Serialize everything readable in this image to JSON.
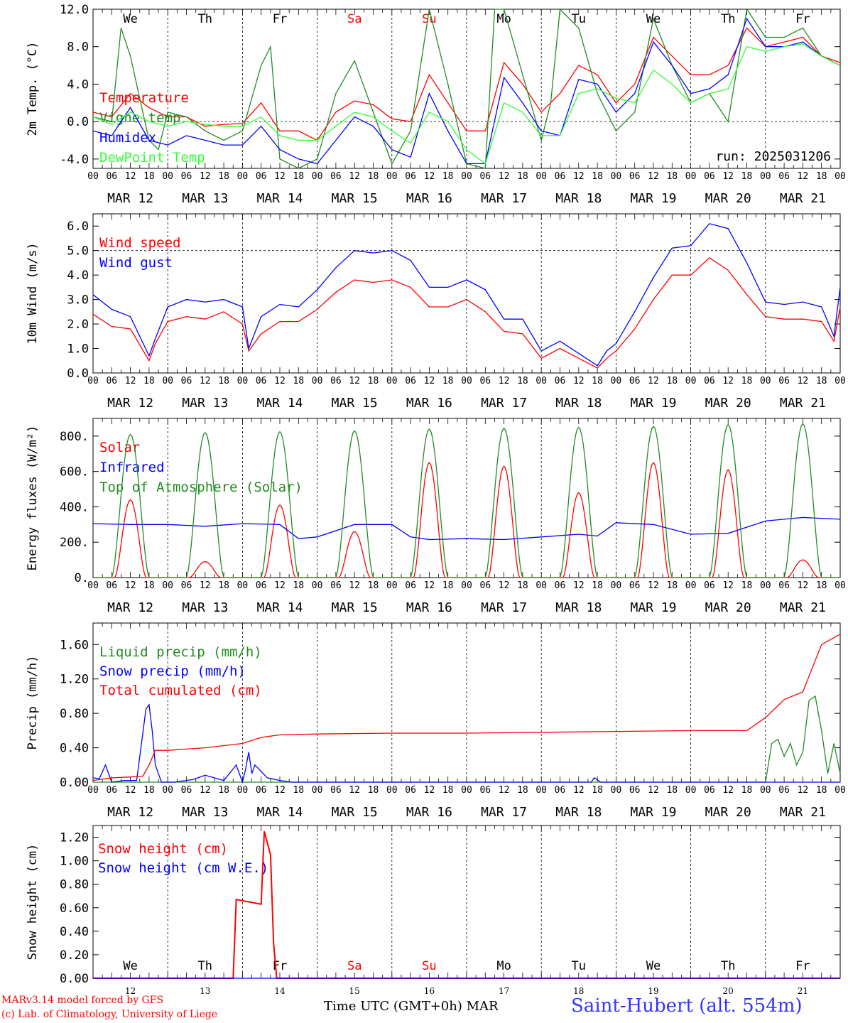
{
  "chart_data": [
    {
      "type": "line",
      "ylabel": "2m Temp. (°C)",
      "ylim": [
        -5.0,
        12.0
      ],
      "yticks": [
        "-4.0",
        "0.0",
        "4.0",
        "8.0",
        "12.0"
      ],
      "ytick_values": [
        -4,
        0,
        4,
        8,
        12
      ],
      "ref_line": 0,
      "run_label": "run: 2025031206",
      "weekdays": [
        {
          "label": "We",
          "color": "#000000"
        },
        {
          "label": "Th",
          "color": "#000000"
        },
        {
          "label": "Fr",
          "color": "#000000"
        },
        {
          "label": "Sa",
          "color": "#ff0000"
        },
        {
          "label": "Su",
          "color": "#ff0000"
        },
        {
          "label": "Mo",
          "color": "#000000"
        },
        {
          "label": "Tu",
          "color": "#000000"
        },
        {
          "label": "We",
          "color": "#000000"
        },
        {
          "label": "Th",
          "color": "#000000"
        },
        {
          "label": "Fr",
          "color": "#000000"
        }
      ],
      "series": [
        {
          "name": "Temperature",
          "color": "#ff0000",
          "x": [
            0,
            6,
            12,
            18,
            24,
            30,
            36,
            42,
            48,
            54,
            60,
            66,
            72,
            78,
            84,
            90,
            96,
            102,
            108,
            114,
            120,
            126,
            132,
            138,
            144,
            150,
            156,
            162,
            168,
            174,
            180,
            186,
            192,
            198,
            204,
            210,
            216,
            222,
            228,
            234,
            240
          ],
          "values": [
            1,
            0.5,
            3,
            1.5,
            0.5,
            0.5,
            -0.5,
            -0.3,
            -0.2,
            2,
            -1,
            -1,
            -2,
            1,
            2.2,
            1.8,
            0.3,
            0,
            5,
            2,
            -1,
            -1,
            6.3,
            4,
            1,
            3,
            6,
            5,
            2,
            4,
            9,
            7,
            5,
            5,
            6,
            10,
            8,
            8.5,
            9,
            7,
            6.3
          ]
        },
        {
          "name": "Vigne temp",
          "color": "#228b22",
          "x": [
            0,
            6,
            9,
            12,
            18,
            21,
            24,
            30,
            36,
            42,
            48,
            54,
            57,
            60,
            66,
            72,
            78,
            84,
            90,
            96,
            102,
            108,
            114,
            120,
            126,
            129,
            132,
            138,
            144,
            147,
            150,
            156,
            162,
            168,
            174,
            180,
            186,
            192,
            198,
            204,
            210,
            216,
            222,
            228,
            234,
            240
          ],
          "values": [
            0.5,
            0,
            10,
            7,
            -2,
            -3,
            1,
            0.5,
            -1,
            -2,
            -1,
            6,
            8,
            -4,
            -5,
            -4,
            3,
            6.5,
            1,
            -4.5,
            -1,
            12,
            4,
            -4.5,
            -5,
            12,
            12,
            5,
            -2,
            2,
            12,
            10,
            3,
            -1,
            1,
            11,
            6,
            2,
            3,
            0,
            12,
            9,
            9,
            10,
            7,
            6
          ]
        },
        {
          "name": "Humidex",
          "color": "#0000ff",
          "x": [
            0,
            6,
            12,
            18,
            24,
            30,
            36,
            42,
            48,
            54,
            60,
            66,
            72,
            78,
            84,
            90,
            96,
            102,
            108,
            114,
            120,
            126,
            132,
            138,
            144,
            150,
            156,
            162,
            168,
            174,
            180,
            186,
            192,
            198,
            204,
            210,
            216,
            222,
            228,
            234,
            240
          ],
          "values": [
            -1,
            -1.5,
            1.5,
            -2,
            -2.5,
            -1.5,
            -2,
            -2.5,
            -2.5,
            -0.5,
            -3,
            -4,
            -4.5,
            -2,
            0.5,
            -0.5,
            -3,
            -3.8,
            3,
            -1,
            -4.5,
            -4.5,
            4.7,
            2,
            -1,
            -1.5,
            4.5,
            4,
            1,
            3,
            8.5,
            6,
            3,
            3.5,
            5,
            11,
            8,
            8,
            8.5,
            7,
            6
          ]
        },
        {
          "name": "DewPoint Temp",
          "color": "#33ff33",
          "x": [
            0,
            6,
            12,
            18,
            24,
            30,
            36,
            42,
            48,
            54,
            60,
            66,
            72,
            78,
            84,
            90,
            96,
            102,
            108,
            114,
            120,
            126,
            132,
            138,
            144,
            150,
            156,
            162,
            168,
            174,
            180,
            186,
            192,
            198,
            204,
            210,
            216,
            222,
            228,
            234,
            240
          ],
          "values": [
            0.5,
            -0.3,
            1,
            0,
            -0.5,
            0,
            -0.3,
            -0.5,
            -0.5,
            0.5,
            -1.5,
            -2,
            -2,
            -0.5,
            1,
            0.5,
            -1,
            -2.3,
            1,
            0,
            -3,
            -4.5,
            2,
            1,
            -1.5,
            -1.5,
            3,
            3.5,
            2.5,
            2,
            5.5,
            4,
            2,
            3,
            3.5,
            8,
            7.5,
            8,
            8.3,
            7,
            6
          ]
        }
      ]
    },
    {
      "type": "line",
      "ylabel": "10m Wind (m/s)",
      "ylim": [
        0.0,
        6.5
      ],
      "yticks": [
        "0.0",
        "1.0",
        "2.0",
        "3.0",
        "4.0",
        "5.0",
        "6.0"
      ],
      "ytick_values": [
        0,
        1,
        2,
        3,
        4,
        5,
        6
      ],
      "ref_line": 5,
      "series": [
        {
          "name": "Wind speed",
          "color": "#ff0000",
          "x": [
            0,
            6,
            12,
            18,
            20,
            24,
            30,
            36,
            42,
            48,
            50,
            54,
            60,
            66,
            72,
            78,
            84,
            90,
            96,
            102,
            108,
            114,
            120,
            126,
            132,
            138,
            144,
            150,
            156,
            162,
            165,
            168,
            174,
            180,
            186,
            192,
            198,
            204,
            210,
            216,
            222,
            228,
            234,
            238,
            240
          ],
          "values": [
            2.4,
            1.9,
            1.8,
            0.5,
            1.2,
            2.1,
            2.3,
            2.2,
            2.5,
            2,
            0.9,
            1.6,
            2.1,
            2.1,
            2.6,
            3.3,
            3.8,
            3.7,
            3.8,
            3.5,
            2.7,
            2.7,
            3,
            2.5,
            1.7,
            1.6,
            0.6,
            1,
            0.6,
            0.2,
            0.6,
            0.9,
            1.8,
            3,
            4,
            4,
            4.7,
            4.2,
            3.2,
            2.3,
            2.2,
            2.2,
            2.1,
            1.3,
            2.7
          ]
        },
        {
          "name": "Wind gust",
          "color": "#0000ff",
          "x": [
            0,
            6,
            12,
            18,
            20,
            24,
            30,
            36,
            42,
            48,
            50,
            54,
            60,
            66,
            72,
            78,
            84,
            90,
            96,
            102,
            108,
            114,
            120,
            126,
            132,
            138,
            144,
            150,
            156,
            162,
            165,
            168,
            174,
            180,
            186,
            192,
            198,
            204,
            210,
            216,
            222,
            228,
            234,
            238,
            240
          ],
          "values": [
            3.2,
            2.6,
            2.3,
            0.7,
            1.4,
            2.7,
            3,
            2.9,
            3,
            2.7,
            1,
            2.3,
            2.8,
            2.7,
            3.4,
            4.3,
            5,
            4.9,
            5,
            4.6,
            3.5,
            3.5,
            3.8,
            3.4,
            2.2,
            2.2,
            0.9,
            1.3,
            0.8,
            0.3,
            0.9,
            1.2,
            2.5,
            3.9,
            5.1,
            5.2,
            6.1,
            5.9,
            4.5,
            2.9,
            2.8,
            2.9,
            2.7,
            1.5,
            3.5
          ]
        }
      ]
    },
    {
      "type": "line",
      "ylabel": "Energy fluxes (W/m²)",
      "ylim": [
        0,
        900
      ],
      "yticks": [
        "0.",
        "200.",
        "400.",
        "600.",
        "800."
      ],
      "ytick_values": [
        0,
        200,
        400,
        600,
        800
      ],
      "series": [
        {
          "name": "Solar",
          "color": "#ff0000",
          "peaks": [
            440,
            90,
            410,
            260,
            650,
            630,
            480,
            650,
            610,
            100
          ]
        },
        {
          "name": "Infrared",
          "color": "#0000ff",
          "x": [
            0,
            12,
            24,
            36,
            48,
            60,
            66,
            72,
            84,
            96,
            102,
            108,
            120,
            132,
            144,
            156,
            162,
            168,
            180,
            192,
            204,
            216,
            228,
            240
          ],
          "values": [
            305,
            300,
            300,
            290,
            305,
            300,
            220,
            230,
            300,
            300,
            230,
            215,
            220,
            215,
            230,
            245,
            235,
            310,
            300,
            245,
            250,
            320,
            340,
            330
          ]
        },
        {
          "name": "Top of Atmosphere (Solar)",
          "color": "#228b22",
          "peaks": [
            810,
            820,
            825,
            830,
            840,
            845,
            850,
            855,
            865,
            870
          ]
        }
      ]
    },
    {
      "type": "line",
      "ylabel": "Precip (mm/h)",
      "ylim": [
        0.0,
        1.85
      ],
      "yticks": [
        "0.00",
        "0.40",
        "0.80",
        "1.20",
        "1.60"
      ],
      "ytick_values": [
        0,
        0.4,
        0.8,
        1.2,
        1.6
      ],
      "series": [
        {
          "name": "Liquid precip (mm/h)",
          "color": "#228b22",
          "x": [
            0,
            216,
            218,
            220,
            222,
            224,
            226,
            228,
            230,
            232,
            234,
            236,
            238,
            240
          ],
          "values": [
            0,
            0,
            0.45,
            0.5,
            0.3,
            0.45,
            0.2,
            0.35,
            0.95,
            1.0,
            0.6,
            0.1,
            0.45,
            0.1
          ]
        },
        {
          "name": "Snow precip (mm/h)",
          "color": "#0000ff",
          "x": [
            0,
            2,
            4,
            6,
            10,
            14,
            17,
            18,
            19,
            20,
            22,
            26,
            32,
            36,
            42,
            46,
            48,
            49,
            50,
            51,
            52,
            56,
            60,
            64,
            160,
            161,
            162,
            163,
            164,
            240
          ],
          "values": [
            0.05,
            0.04,
            0.2,
            0,
            0.02,
            0.02,
            0.85,
            0.9,
            0.6,
            0.2,
            0,
            0,
            0.03,
            0.08,
            0.02,
            0.2,
            0,
            0.15,
            0.35,
            0.1,
            0.2,
            0.05,
            0.02,
            0,
            0,
            0.05,
            0.03,
            0,
            0,
            0
          ]
        },
        {
          "name": "Total cumulated (cm)",
          "color": "#ff0000",
          "x": [
            0,
            6,
            12,
            16,
            18,
            20,
            24,
            36,
            48,
            54,
            60,
            72,
            96,
            120,
            144,
            168,
            192,
            210,
            216,
            222,
            228,
            234,
            240
          ],
          "values": [
            0.02,
            0.05,
            0.06,
            0.07,
            0.2,
            0.37,
            0.37,
            0.4,
            0.45,
            0.52,
            0.55,
            0.56,
            0.57,
            0.57,
            0.58,
            0.59,
            0.6,
            0.6,
            0.75,
            0.96,
            1.05,
            1.6,
            1.72
          ]
        }
      ]
    },
    {
      "type": "line",
      "ylabel": "Snow height (cm)",
      "ylim": [
        0.0,
        1.3
      ],
      "yticks": [
        "0.00",
        "0.20",
        "0.40",
        "0.60",
        "0.80",
        "1.00",
        "1.20"
      ],
      "ytick_values": [
        0,
        0.2,
        0.4,
        0.6,
        0.8,
        1.0,
        1.2
      ],
      "weekdays": [
        {
          "label": "We",
          "color": "#000000"
        },
        {
          "label": "Th",
          "color": "#000000"
        },
        {
          "label": "Fr",
          "color": "#000000"
        },
        {
          "label": "Sa",
          "color": "#ff0000"
        },
        {
          "label": "Su",
          "color": "#ff0000"
        },
        {
          "label": "Mo",
          "color": "#000000"
        },
        {
          "label": "Tu",
          "color": "#000000"
        },
        {
          "label": "We",
          "color": "#000000"
        },
        {
          "label": "Th",
          "color": "#000000"
        },
        {
          "label": "Fr",
          "color": "#000000"
        }
      ],
      "day_numbers": [
        "12",
        "13",
        "14",
        "15",
        "16",
        "17",
        "18",
        "19",
        "20",
        "21"
      ],
      "series": [
        {
          "name": "Snow height (cm)",
          "color": "#ff0000",
          "x": [
            0,
            45,
            46,
            54,
            55,
            56,
            57,
            58,
            59,
            60,
            240
          ],
          "values": [
            0,
            0,
            0.67,
            0.63,
            1.25,
            1.15,
            1.05,
            0.3,
            0,
            0,
            0
          ]
        },
        {
          "name": "Snow height (cm W.E.)",
          "color": "#0000ff",
          "x": [
            0,
            240
          ],
          "values": [
            0,
            0
          ]
        }
      ]
    }
  ],
  "x_axis": {
    "hour_ticks": [
      "00",
      "06",
      "12",
      "18"
    ],
    "end_tick": "00",
    "dates": [
      "MAR 12",
      "MAR 13",
      "MAR 14",
      "MAR 15",
      "MAR 16",
      "MAR 17",
      "MAR 18",
      "MAR 19",
      "MAR 20",
      "MAR 21"
    ],
    "title": "Time UTC (GMT+0h)",
    "month": "MAR"
  },
  "footer": {
    "credit_line1": "MARv3.14 model forced by GFS",
    "credit_line2": "(c) Lab. of Climatology, University of Liege",
    "station": "Saint-Hubert (alt. 554m)"
  }
}
